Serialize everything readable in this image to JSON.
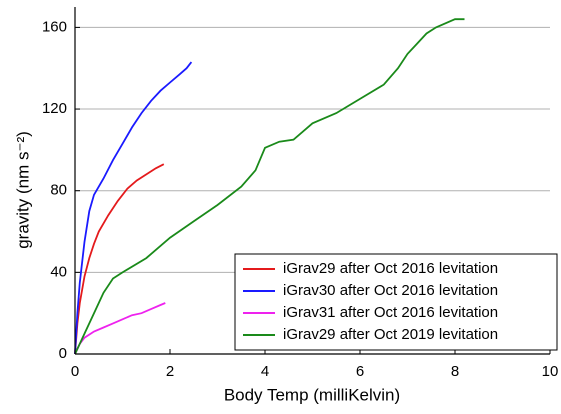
{
  "chart_data": {
    "type": "line",
    "x_label": "Body Temp (milliKelvin)",
    "y_label": "gravity (nm s⁻²)",
    "xlim": [
      0,
      10
    ],
    "xticks": [
      0,
      2,
      4,
      6,
      8,
      10
    ],
    "ylim": [
      0,
      170
    ],
    "yticks": [
      0,
      40,
      80,
      120,
      160
    ],
    "grid": true,
    "legend": "lower right",
    "series": [
      {
        "name": "iGrav29 after Oct 2016 levitation",
        "color": "#e41a1c",
        "x": [
          0,
          0.05,
          0.1,
          0.2,
          0.3,
          0.4,
          0.5,
          0.7,
          0.9,
          1.1,
          1.3,
          1.5,
          1.7,
          1.87
        ],
        "values": [
          0,
          15,
          25,
          38,
          47,
          54,
          60,
          68,
          75,
          81,
          85,
          88,
          91,
          93
        ]
      },
      {
        "name": "iGrav30 after Oct 2016 levitation",
        "color": "#1a1aff",
        "x": [
          0,
          0.05,
          0.1,
          0.2,
          0.3,
          0.4,
          0.6,
          0.8,
          1.0,
          1.2,
          1.4,
          1.6,
          1.8,
          2.0,
          2.2,
          2.35,
          2.45
        ],
        "values": [
          0,
          20,
          35,
          55,
          70,
          78,
          86,
          95,
          103,
          111,
          118,
          124,
          129,
          133,
          137,
          140,
          143
        ]
      },
      {
        "name": "iGrav31 after Oct 2016 levitation",
        "color": "#ee22ee",
        "x": [
          0,
          0.1,
          0.2,
          0.4,
          0.6,
          0.8,
          1.0,
          1.2,
          1.4,
          1.6,
          1.8,
          1.9
        ],
        "values": [
          0,
          5,
          8,
          11,
          13,
          15,
          17,
          19,
          20,
          22,
          24,
          25
        ]
      },
      {
        "name": "iGrav29 after Oct 2019 levitation",
        "color": "#1a8a1a",
        "x": [
          0,
          0.1,
          0.2,
          0.4,
          0.6,
          0.8,
          1.0,
          1.5,
          2.0,
          2.5,
          3.0,
          3.5,
          3.8,
          4.0,
          4.3,
          4.6,
          5.0,
          5.5,
          6.0,
          6.5,
          6.8,
          7.0,
          7.2,
          7.4,
          7.6,
          8.0,
          8.2
        ],
        "values": [
          0,
          5,
          10,
          20,
          30,
          37,
          40,
          47,
          57,
          65,
          73,
          82,
          90,
          101,
          104,
          105,
          113,
          118,
          125,
          132,
          140,
          147,
          152,
          157,
          160,
          164,
          164
        ]
      }
    ]
  }
}
